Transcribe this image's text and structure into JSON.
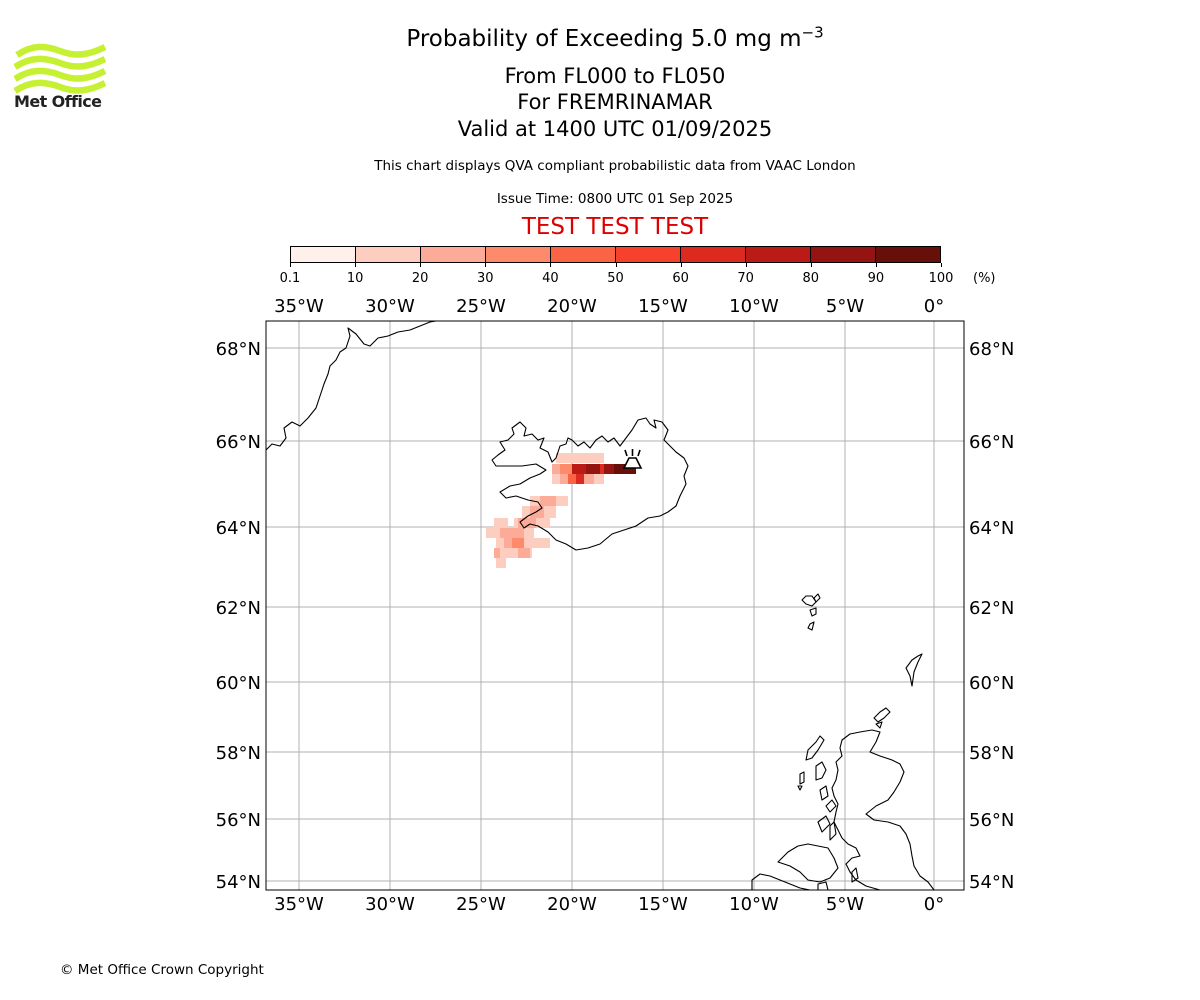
{
  "branding": {
    "logo_text": "Met Office",
    "logo_color": "#c6f032"
  },
  "header": {
    "title_prefix": "Probability of Exceeding 5.0 mg m",
    "title_superscript": "−3",
    "flight_levels": "From FL000 to FL050",
    "area": "For FREMRINAMAR",
    "valid_time": "Valid at 1400 UTC 01/09/2025",
    "description": "This chart displays QVA compliant probabilistic data from VAAC London",
    "issue_time": "Issue Time: 0800 UTC 01 Sep 2025",
    "test_banner": "TEST TEST TEST",
    "test_color": "#dd0000"
  },
  "colorbar": {
    "colors": [
      "#fff0eb",
      "#fdcdc0",
      "#fcab98",
      "#fc8a6b",
      "#fa6445",
      "#f6412c",
      "#dc2b1e",
      "#bb1b16",
      "#931410",
      "#661009"
    ],
    "ticks": [
      "0.1",
      "10",
      "20",
      "30",
      "40",
      "50",
      "60",
      "70",
      "80",
      "90",
      "100"
    ],
    "unit": "(%)"
  },
  "map": {
    "lon_labels": [
      "35°W",
      "30°W",
      "25°W",
      "20°W",
      "15°W",
      "10°W",
      "5°W",
      "0°"
    ],
    "lat_labels": [
      "68°N",
      "66°N",
      "64°N",
      "62°N",
      "60°N",
      "58°N",
      "56°N",
      "54°N"
    ],
    "volcano_icon": "volcano-icon"
  },
  "footer": {
    "copyright": "© Met Office Crown Copyright"
  }
}
